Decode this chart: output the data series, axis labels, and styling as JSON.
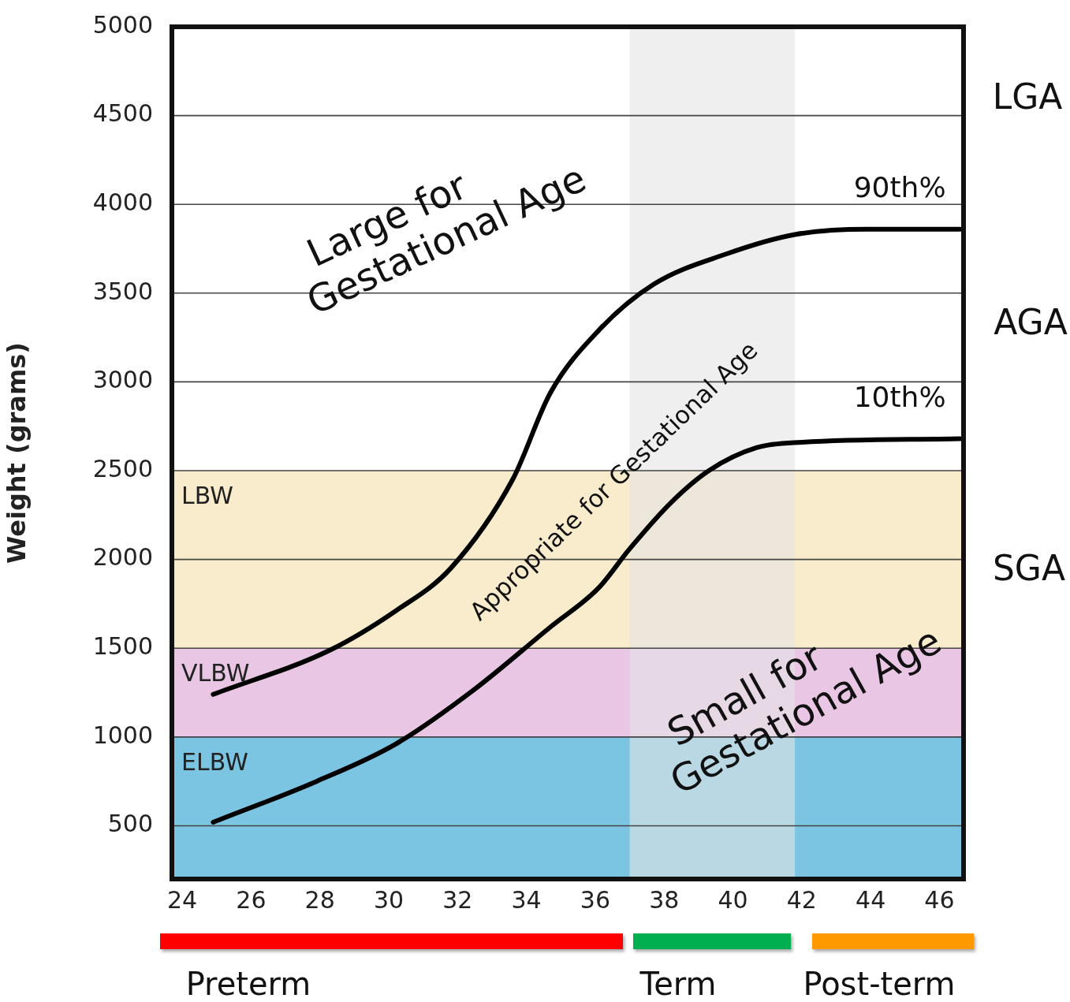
{
  "chart_data": {
    "type": "line",
    "ylabel": "Weight (grams)",
    "xlim": [
      23.7,
      46.7
    ],
    "xticks": [
      24,
      26,
      28,
      30,
      32,
      34,
      36,
      38,
      40,
      42,
      44,
      46
    ],
    "ylim": [
      200,
      5000
    ],
    "yticks": [
      500,
      1000,
      1500,
      2000,
      2500,
      3000,
      3500,
      4000,
      4500,
      5000
    ],
    "grid": "y",
    "marker": "none",
    "line_style": "solid",
    "series": [
      {
        "name": "90th%",
        "color": "#000000",
        "x": [
          24.9,
          28.3,
          30.2,
          31.8,
          33.6,
          34.7,
          36.1,
          37.7,
          39.8,
          41.8,
          43.9,
          46.6
        ],
        "values": [
          1240,
          1490,
          1710,
          1950,
          2450,
          2940,
          3290,
          3550,
          3720,
          3830,
          3860,
          3860
        ]
      },
      {
        "name": "10th%",
        "color": "#000000",
        "x": [
          24.9,
          27.9,
          30.2,
          32.5,
          34.7,
          36.1,
          37.0,
          38.2,
          39.3,
          40.7,
          42.0,
          46.6
        ],
        "values": [
          520,
          750,
          960,
          1270,
          1620,
          1840,
          2060,
          2320,
          2500,
          2630,
          2660,
          2680
        ]
      }
    ],
    "bands": [
      {
        "axis": "y",
        "from": 200,
        "to": 1000,
        "label": "ELBW",
        "color": "#7cc5e2"
      },
      {
        "axis": "y",
        "from": 1000,
        "to": 1500,
        "label": "VLBW",
        "color": "#e9c6e4"
      },
      {
        "axis": "y",
        "from": 1500,
        "to": 2500,
        "label": "LBW",
        "color": "#f9eccd"
      },
      {
        "axis": "x",
        "from": 37,
        "to": 41.8,
        "color": "#e4e4e4"
      }
    ],
    "annotations": [
      "Large for Gestational Age",
      "Appropriate for Gestational Age",
      "Small for Gestational Age",
      "LGA",
      "AGA",
      "SGA",
      "Preterm",
      "Term",
      "Post-term"
    ]
  }
}
